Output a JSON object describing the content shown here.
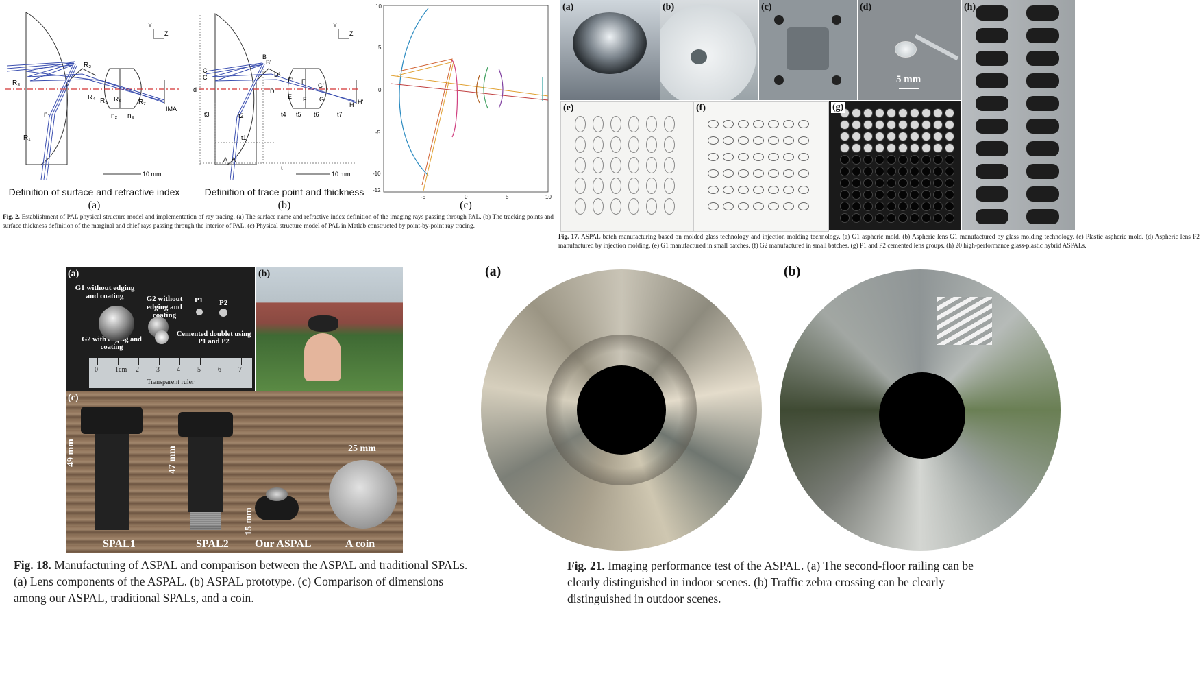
{
  "fig2": {
    "panel_a": {
      "surfaces": [
        "R₂",
        "R₃",
        "R₄",
        "R₅",
        "R₆",
        "R₇",
        "R₁"
      ],
      "indices": [
        "n₁",
        "n₂",
        "n₃"
      ],
      "ima": "IMA",
      "scale": "10 mm",
      "axis_y": "Y",
      "axis_z": "Z",
      "title": "Definition of surface and refractive index",
      "label": "(a)"
    },
    "panel_b": {
      "points": [
        "B",
        "B'",
        "C'",
        "C",
        "D'",
        "D",
        "E'",
        "E",
        "F'",
        "F",
        "G'",
        "G",
        "H",
        "H'",
        "A",
        "A'"
      ],
      "thick": [
        "d",
        "t3",
        "t2",
        "t1",
        "t4",
        "t5",
        "t6",
        "t7",
        "t"
      ],
      "scale": "10 mm",
      "axis_y": "Y",
      "axis_z": "Z",
      "title": "Definition of trace point and thickness",
      "label": "(b)"
    },
    "panel_c": {
      "yticks": [
        "10",
        "5",
        "0",
        "-5",
        "-10",
        "-12"
      ],
      "xticks": [
        "-5",
        "0",
        "5",
        "10"
      ],
      "label": "(c)"
    },
    "caption_label": "Fig. 2.",
    "caption_text": "Establishment of PAL physical structure model and implementation of ray tracing. (a) The surface name and refractive index definition of the imaging rays passing through PAL. (b) The tracking points and surface thickness definition of the marginal and chief rays passing through the interior of PAL. (c) Physical structure model of PAL in Matlab constructed by point-by-point ray tracing."
  },
  "fig17": {
    "labels": [
      "(a)",
      "(b)",
      "(c)",
      "(d)",
      "(h)",
      "(e)",
      "(f)",
      "(g)"
    ],
    "scale": "5 mm",
    "caption_label": "Fig. 17.",
    "caption_text": "ASPAL batch manufacturing based on molded glass technology and injection molding technology. (a) G1 aspheric mold. (b) Aspheric lens G1 manufactured by glass molding technology. (c) Plastic aspheric mold. (d) Aspheric lens P2 manufactured by injection molding. (e) G1 manufactured in small batches. (f) G2 manufactured in small batches. (g) P1 and P2 cemented lens groups. (h) 20 high-performance glass-plastic hybrid ASPALs."
  },
  "fig18": {
    "labels": [
      "(a)",
      "(b)",
      "(c)"
    ],
    "annotations": {
      "g1": "G1 without edging and coating",
      "g2": "G2 without edging and coating",
      "p1": "P1",
      "p2": "P2",
      "cemented": "Cemented doublet using P1 and P2",
      "g2e": "G2 with edging and coating",
      "ruler": "Transparent ruler",
      "ruler_ticks": [
        "0",
        "1cm",
        "2",
        "3",
        "4",
        "5",
        "6",
        "7"
      ]
    },
    "dims": [
      "49 mm",
      "47 mm",
      "15 mm",
      "25 mm"
    ],
    "names": [
      "SPAL1",
      "SPAL2",
      "Our ASPAL",
      "A coin"
    ],
    "caption_label": "Fig. 18.",
    "caption_text": "Manufacturing of ASPAL and comparison between the ASPAL and traditional SPALs. (a) Lens components of the ASPAL. (b) ASPAL prototype. (c) Comparison of dimensions among our ASPAL, traditional SPALs, and a coin."
  },
  "fig21": {
    "labels": [
      "(a)",
      "(b)"
    ],
    "caption_label": "Fig. 21.",
    "caption_text": "Imaging performance test of the ASPAL. (a) The second-floor railing can be clearly distinguished in indoor scenes. (b) Traffic zebra crossing can be clearly distinguished in outdoor scenes."
  },
  "colors": {
    "ray_blue": "#3b4fb0",
    "axis_red": "#d23232",
    "coin": "#b8b8b8",
    "wood": "#8a6e55"
  }
}
